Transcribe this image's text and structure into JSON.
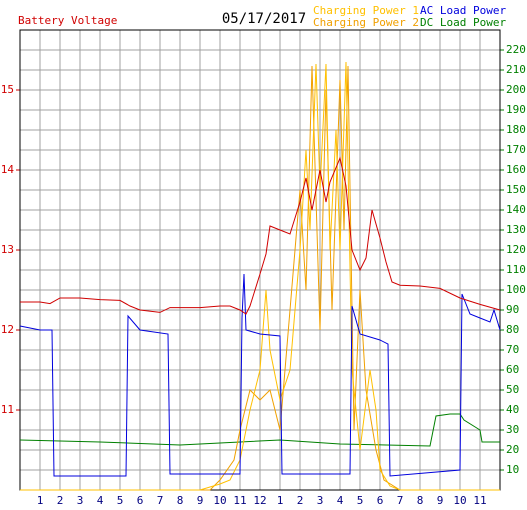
{
  "chart_data": {
    "type": "line",
    "title": "05/17/2017",
    "y_label": "Battery Voltage",
    "xlim": [
      0,
      24
    ],
    "xticks": [
      1,
      2,
      3,
      4,
      5,
      6,
      7,
      8,
      9,
      10,
      11,
      12,
      {
        "value": 13,
        "label": "1"
      },
      {
        "value": 14,
        "label": "2"
      },
      {
        "value": 15,
        "label": "3"
      },
      {
        "value": 16,
        "label": "4"
      },
      {
        "value": 17,
        "label": "5"
      },
      {
        "value": 18,
        "label": "6"
      },
      {
        "value": 19,
        "label": "7"
      },
      {
        "value": 20,
        "label": "8"
      },
      {
        "value": 21,
        "label": "9"
      },
      {
        "value": 22,
        "label": "10"
      },
      {
        "value": 23,
        "label": "11"
      }
    ],
    "ylim": [
      10,
      15.75
    ],
    "yticks": [
      11,
      12,
      13,
      14,
      15
    ],
    "y2lim": [
      0,
      230
    ],
    "y2ticks": [
      10,
      20,
      30,
      40,
      50,
      60,
      70,
      80,
      90,
      100,
      110,
      120,
      130,
      140,
      150,
      160,
      170,
      180,
      190,
      200,
      210,
      220
    ],
    "grid": true,
    "series": [
      {
        "name": "DC Load Power",
        "color": "#008000",
        "axis": "y2",
        "x": [
          0,
          4,
          8,
          11,
          13,
          16,
          20.5,
          20.8,
          21.5,
          22,
          22.2,
          23,
          23.1,
          24
        ],
        "values": [
          25,
          24,
          22.5,
          24,
          25,
          23,
          22,
          37,
          38,
          38,
          35,
          30,
          24,
          24
        ]
      },
      {
        "name": "Charging Power 2",
        "color": "#f0a000",
        "axis": "y2",
        "x": [
          0,
          9.5,
          10,
          10.7,
          11,
          11.5,
          12,
          12.5,
          13,
          13.5,
          14,
          14.3,
          14.6,
          15,
          15.3,
          15.6,
          16,
          16.2,
          16.4,
          16.7,
          17,
          17.3,
          17.8,
          18.2,
          19,
          24
        ],
        "values": [
          0,
          0,
          5,
          15,
          30,
          50,
          45,
          50,
          30,
          90,
          150,
          100,
          212,
          80,
          200,
          90,
          205,
          130,
          212,
          30,
          100,
          50,
          20,
          5,
          0,
          0
        ]
      },
      {
        "name": "Charging Power 1",
        "color": "#ffc000",
        "axis": "y2",
        "x": [
          0,
          9,
          10,
          10.5,
          11,
          11.5,
          12,
          12.3,
          12.5,
          13,
          13.5,
          14,
          14.3,
          14.5,
          14.8,
          15,
          15.3,
          15.5,
          15.8,
          16,
          16.3,
          16.6,
          17,
          17.5,
          17.8,
          18,
          18.5,
          19,
          24
        ],
        "values": [
          0,
          0,
          3,
          5,
          15,
          40,
          60,
          100,
          70,
          45,
          60,
          120,
          170,
          130,
          213,
          150,
          213,
          120,
          180,
          120,
          214,
          60,
          20,
          60,
          40,
          10,
          2,
          0,
          0
        ]
      },
      {
        "name": "AC Load Power",
        "color": "#0000dd",
        "axis": "y2",
        "x": [
          0,
          1,
          1.6,
          1.7,
          5.3,
          5.4,
          6,
          7.4,
          7.5,
          11,
          11.1,
          11.2,
          11.3,
          12,
          13,
          13.1,
          16.5,
          16.6,
          17,
          18,
          18.4,
          18.5,
          22,
          22.1,
          22.5,
          23,
          23.5,
          23.7,
          24
        ],
        "values": [
          82,
          80,
          80,
          7,
          7,
          87,
          80,
          78,
          8,
          8,
          86,
          108,
          80,
          78,
          77,
          8,
          8,
          92,
          78,
          75,
          73,
          7,
          10,
          98,
          88,
          86,
          84,
          90,
          80
        ]
      },
      {
        "name": "Battery Voltage",
        "color": "#d00000",
        "axis": "y",
        "x": [
          0,
          1,
          1.5,
          2,
          3,
          4,
          5,
          5.5,
          6,
          7,
          7.5,
          8,
          9,
          10,
          10.5,
          11,
          11.3,
          11.5,
          12,
          12.3,
          12.5,
          13,
          13.5,
          14,
          14.3,
          14.6,
          15,
          15.3,
          15.5,
          16,
          16.3,
          16.6,
          17,
          17.3,
          17.6,
          18,
          18.3,
          18.6,
          19,
          20,
          21,
          22,
          23,
          24
        ],
        "values": [
          12.35,
          12.35,
          12.33,
          12.4,
          12.4,
          12.38,
          12.37,
          12.3,
          12.25,
          12.22,
          12.28,
          12.28,
          12.28,
          12.3,
          12.3,
          12.25,
          12.2,
          12.3,
          12.7,
          12.95,
          13.3,
          13.25,
          13.2,
          13.6,
          13.9,
          13.5,
          14.0,
          13.6,
          13.85,
          14.15,
          13.8,
          13.0,
          12.75,
          12.9,
          13.5,
          13.15,
          12.85,
          12.6,
          12.56,
          12.55,
          12.52,
          12.4,
          12.32,
          12.25
        ]
      }
    ]
  }
}
